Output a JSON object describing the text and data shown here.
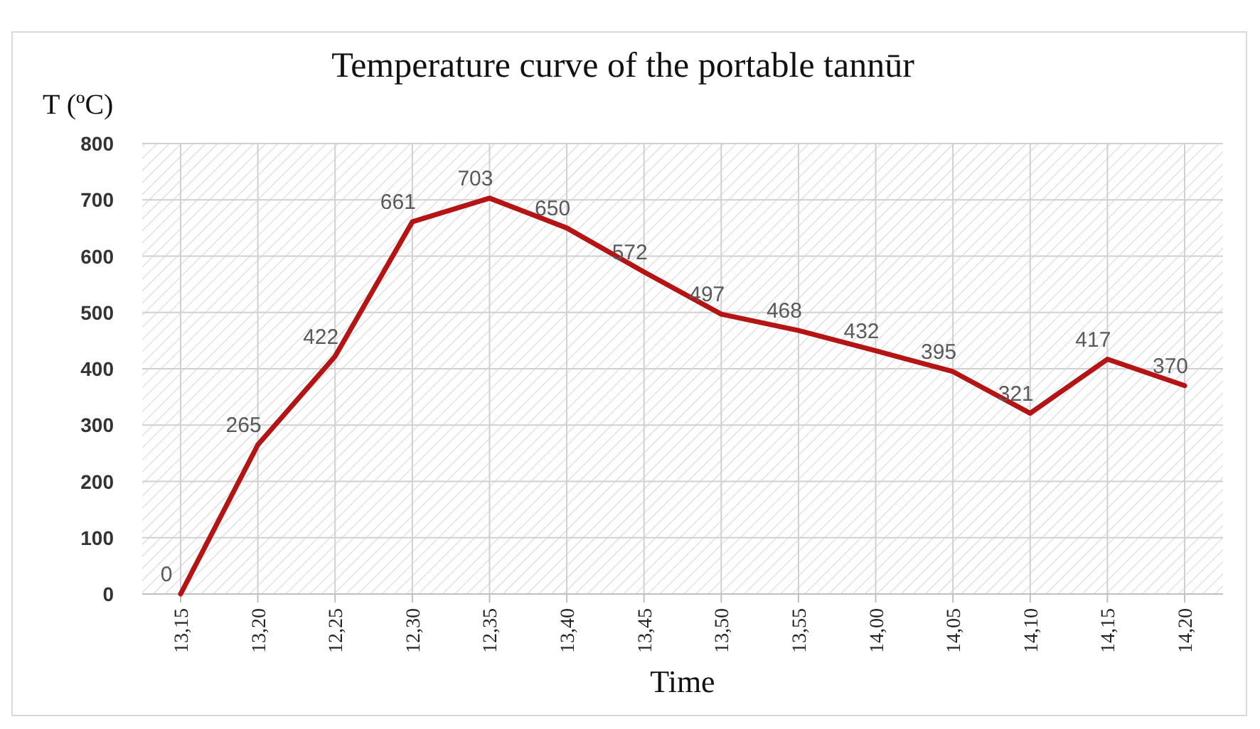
{
  "chart_data": {
    "type": "line",
    "title": "Temperature curve of the portable  tannūr",
    "ylabel": "T (ºC)",
    "xlabel": "Time",
    "categories": [
      "13,15",
      "13,20",
      "12,25",
      "12,30",
      "12,35",
      "13,40",
      "13,45",
      "13,50",
      "13,55",
      "14,00",
      "14,05",
      "14,10",
      "14,15",
      "14,20"
    ],
    "series": [
      {
        "color": "#b41414",
        "values": [
          0,
          265,
          422,
          661,
          703,
          650,
          572,
          497,
          468,
          432,
          395,
          321,
          417,
          370
        ]
      }
    ],
    "ylim": [
      0,
      800
    ],
    "yticks": [
      0,
      100,
      200,
      300,
      400,
      500,
      600,
      700,
      800
    ],
    "grid": true,
    "data_labels": true,
    "line_style": "solid"
  }
}
